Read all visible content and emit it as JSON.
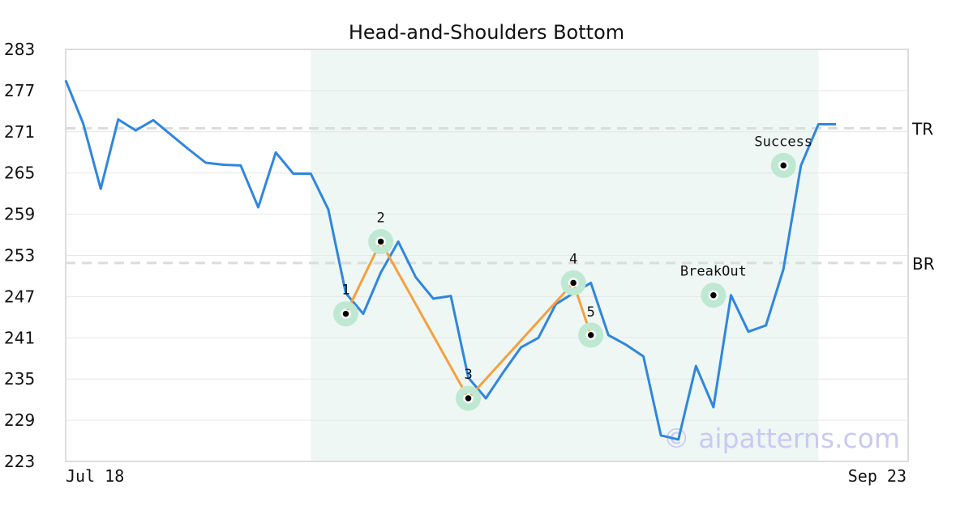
{
  "chart_data": {
    "type": "line",
    "title": "Head-and-Shoulders Bottom",
    "xlabel": "",
    "ylabel": "",
    "ylim": [
      223,
      283
    ],
    "y_ticks": [
      "223",
      "229",
      "235",
      "241",
      "247",
      "253",
      "259",
      "265",
      "271",
      "277",
      "283"
    ],
    "x_tick_labels": [
      "Jul 18",
      "Sep 23"
    ],
    "grid": "horizontal",
    "series": [
      {
        "color": "#2f86e0",
        "values": [
          278.5,
          272.2,
          262.7,
          272.8,
          271.2,
          272.7,
          270.6,
          268.5,
          266.5,
          266.2,
          266.1,
          260.0,
          268.0,
          264.9,
          264.9,
          259.7,
          247.5,
          244.5,
          250.5,
          255.0,
          249.8,
          246.7,
          247.1,
          235.2,
          232.2,
          236.0,
          239.6,
          241.0,
          245.9,
          247.5,
          249.0,
          241.4,
          240.0,
          238.3,
          226.8,
          226.2,
          236.9,
          230.9,
          247.2,
          241.9,
          242.8,
          251.0,
          266.1,
          272.1,
          272.1
        ]
      }
    ],
    "pattern_points": [
      {
        "label": "1",
        "index": 16,
        "value": 244.5
      },
      {
        "label": "2",
        "index": 18,
        "value": 255.0
      },
      {
        "label": "3",
        "index": 23,
        "value": 232.2
      },
      {
        "label": "4",
        "index": 29,
        "value": 249.0
      },
      {
        "label": "5",
        "index": 30,
        "value": 241.4
      }
    ],
    "pattern_color": "#f5a040",
    "events": [
      {
        "label": "BreakOut",
        "index": 37,
        "value": 247.2
      },
      {
        "label": "Success",
        "index": 41,
        "value": 266.1
      }
    ],
    "levels": [
      {
        "label": "TR",
        "value": 271.5
      },
      {
        "label": "BR",
        "value": 251.9
      }
    ],
    "shaded_region": {
      "from_index": 14,
      "to_index": 43,
      "color": "#eef7f3"
    },
    "marker_ring_color": "#bfe8d3",
    "watermark": "© aipatterns.com"
  }
}
